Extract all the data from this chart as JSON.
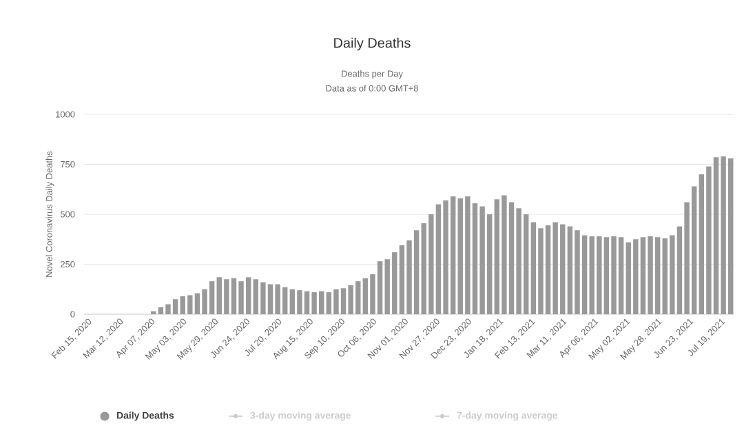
{
  "chart_data": {
    "type": "bar",
    "title": "Daily Deaths",
    "subtitle": "Deaths per Day",
    "ylabel": "Novel Coronavirus Daily Deaths",
    "annotations": [
      "Data as of 0:00 GMT+8",
      "3-day moving average",
      "7-day moving average"
    ],
    "x": [
      "2020-02-15",
      "2020-02-21",
      "2020-02-27",
      "2020-03-04",
      "2020-03-10",
      "2020-03-16",
      "2020-03-22",
      "2020-03-28",
      "2020-04-03",
      "2020-04-09",
      "2020-04-15",
      "2020-04-21",
      "2020-04-27",
      "2020-05-03",
      "2020-05-09",
      "2020-05-15",
      "2020-05-21",
      "2020-05-27",
      "2020-06-02",
      "2020-06-08",
      "2020-06-14",
      "2020-06-20",
      "2020-06-26",
      "2020-07-02",
      "2020-07-08",
      "2020-07-14",
      "2020-07-20",
      "2020-07-26",
      "2020-08-01",
      "2020-08-07",
      "2020-08-13",
      "2020-08-19",
      "2020-08-25",
      "2020-08-31",
      "2020-09-06",
      "2020-09-12",
      "2020-09-18",
      "2020-09-24",
      "2020-09-30",
      "2020-10-06",
      "2020-10-12",
      "2020-10-18",
      "2020-10-24",
      "2020-10-30",
      "2020-11-05",
      "2020-11-11",
      "2020-11-17",
      "2020-11-23",
      "2020-11-29",
      "2020-12-05",
      "2020-12-11",
      "2020-12-17",
      "2020-12-23",
      "2020-12-29",
      "2021-01-04",
      "2021-01-10",
      "2021-01-16",
      "2021-01-22",
      "2021-01-28",
      "2021-02-03",
      "2021-02-09",
      "2021-02-15",
      "2021-02-21",
      "2021-02-27",
      "2021-03-05",
      "2021-03-11",
      "2021-03-17",
      "2021-03-23",
      "2021-03-29",
      "2021-04-04",
      "2021-04-10",
      "2021-04-16",
      "2021-04-22",
      "2021-04-28",
      "2021-05-04",
      "2021-05-10",
      "2021-05-16",
      "2021-05-22",
      "2021-05-28",
      "2021-06-03",
      "2021-06-09",
      "2021-06-15",
      "2021-06-21",
      "2021-06-27",
      "2021-07-03",
      "2021-07-09",
      "2021-07-15",
      "2021-07-21",
      "2021-07-27"
    ],
    "series": [
      {
        "name": "Daily Deaths",
        "color": "#999999",
        "values": [
          0,
          0,
          0,
          0,
          0,
          0,
          0,
          0,
          0,
          15,
          35,
          50,
          75,
          90,
          95,
          105,
          125,
          165,
          185,
          175,
          180,
          165,
          185,
          175,
          160,
          150,
          150,
          135,
          125,
          120,
          115,
          110,
          115,
          110,
          125,
          130,
          145,
          165,
          180,
          200,
          265,
          275,
          310,
          345,
          370,
          420,
          455,
          500,
          550,
          570,
          590,
          580,
          590,
          555,
          540,
          500,
          575,
          595,
          560,
          530,
          500,
          460,
          430,
          445,
          460,
          450,
          440,
          420,
          395,
          390,
          390,
          385,
          390,
          385,
          360,
          375,
          385,
          390,
          385,
          380,
          395,
          440,
          560,
          640,
          700,
          740,
          785,
          790,
          780
        ]
      }
    ],
    "xlim": [
      "2020-02-12",
      "2021-07-30"
    ],
    "xticks": [
      {
        "value": "2020-02-15",
        "label": "Feb 15, 2020"
      },
      {
        "value": "2020-03-12",
        "label": "Mar 12, 2020"
      },
      {
        "value": "2020-04-07",
        "label": "Apr 07, 2020"
      },
      {
        "value": "2020-05-03",
        "label": "May 03, 2020"
      },
      {
        "value": "2020-05-29",
        "label": "May 29, 2020"
      },
      {
        "value": "2020-06-24",
        "label": "Jun 24, 2020"
      },
      {
        "value": "2020-07-20",
        "label": "Jul 20, 2020"
      },
      {
        "value": "2020-08-15",
        "label": "Aug 15, 2020"
      },
      {
        "value": "2020-09-10",
        "label": "Sep 10, 2020"
      },
      {
        "value": "2020-10-06",
        "label": "Oct 06, 2020"
      },
      {
        "value": "2020-11-01",
        "label": "Nov 01, 2020"
      },
      {
        "value": "2020-11-27",
        "label": "Nov 27, 2020"
      },
      {
        "value": "2020-12-23",
        "label": "Dec 23, 2020"
      },
      {
        "value": "2021-01-18",
        "label": "Jan 18, 2021"
      },
      {
        "value": "2021-02-13",
        "label": "Feb 13, 2021"
      },
      {
        "value": "2021-03-11",
        "label": "Mar 11, 2021"
      },
      {
        "value": "2021-04-06",
        "label": "Apr 06, 2021"
      },
      {
        "value": "2021-05-02",
        "label": "May 02, 2021"
      },
      {
        "value": "2021-05-28",
        "label": "May 28, 2021"
      },
      {
        "value": "2021-06-23",
        "label": "Jun 23, 2021"
      },
      {
        "value": "2021-07-19",
        "label": "Jul 19, 2021"
      }
    ],
    "ylim": [
      0,
      1000
    ],
    "yticks": [
      0,
      250,
      500,
      750,
      1000
    ],
    "grid": "y",
    "legend": "bottom"
  }
}
